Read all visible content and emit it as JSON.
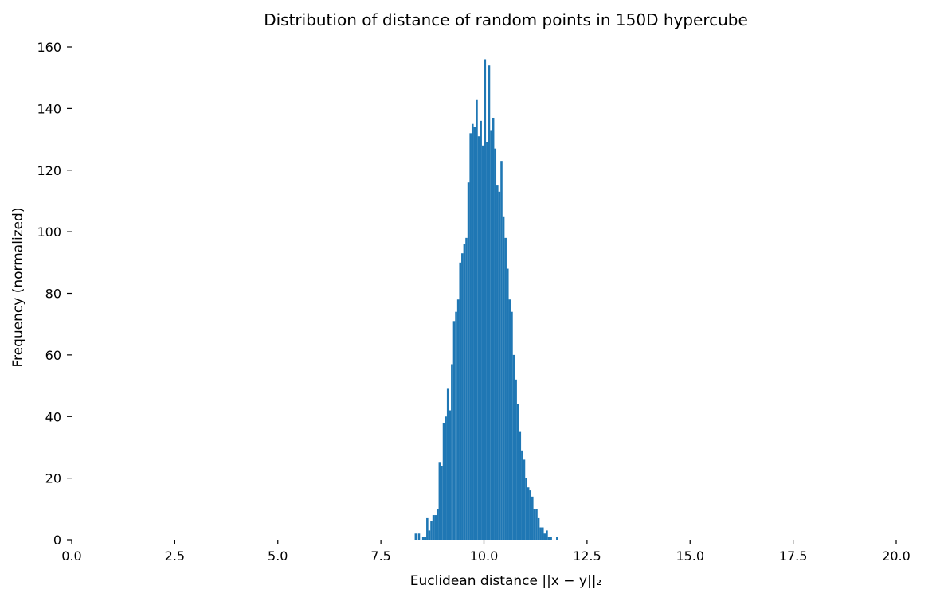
{
  "chart_data": {
    "type": "bar",
    "subtype": "histogram",
    "title": "Distribution of distance of random points in 150D hypercube",
    "xlabel": "Euclidean distance ||x − y||₂",
    "ylabel": "Frequency (normalized)",
    "xlim": [
      0,
      20
    ],
    "ylim": [
      0,
      160
    ],
    "xticks": [
      0,
      2.5,
      5,
      7.5,
      10,
      12.5,
      15,
      17.5,
      20
    ],
    "xtick_labels": [
      "0.0",
      "2.5",
      "5.0",
      "7.5",
      "10.0",
      "12.5",
      "15.0",
      "17.5",
      "20.0"
    ],
    "yticks": [
      0,
      20,
      40,
      60,
      80,
      100,
      120,
      140,
      160
    ],
    "ytick_labels": [
      "0",
      "20",
      "40",
      "60",
      "80",
      "100",
      "120",
      "140",
      "160"
    ],
    "grid": false,
    "color": "#1f77b4",
    "bin_width": 0.05,
    "bins": [
      [
        8.32,
        2
      ],
      [
        8.4,
        2
      ],
      [
        8.5,
        1
      ],
      [
        8.55,
        1
      ],
      [
        8.6,
        7
      ],
      [
        8.65,
        3
      ],
      [
        8.7,
        6
      ],
      [
        8.75,
        8
      ],
      [
        8.8,
        8
      ],
      [
        8.85,
        10
      ],
      [
        8.9,
        25
      ],
      [
        8.95,
        24
      ],
      [
        9.0,
        38
      ],
      [
        9.05,
        40
      ],
      [
        9.1,
        49
      ],
      [
        9.15,
        42
      ],
      [
        9.2,
        57
      ],
      [
        9.25,
        71
      ],
      [
        9.3,
        74
      ],
      [
        9.35,
        78
      ],
      [
        9.4,
        90
      ],
      [
        9.45,
        93
      ],
      [
        9.5,
        96
      ],
      [
        9.55,
        98
      ],
      [
        9.6,
        116
      ],
      [
        9.65,
        132
      ],
      [
        9.7,
        135
      ],
      [
        9.75,
        134
      ],
      [
        9.8,
        143
      ],
      [
        9.85,
        131
      ],
      [
        9.9,
        136
      ],
      [
        9.95,
        128
      ],
      [
        10.0,
        156
      ],
      [
        10.05,
        129
      ],
      [
        10.1,
        154
      ],
      [
        10.15,
        133
      ],
      [
        10.2,
        137
      ],
      [
        10.25,
        127
      ],
      [
        10.3,
        115
      ],
      [
        10.35,
        113
      ],
      [
        10.4,
        123
      ],
      [
        10.45,
        105
      ],
      [
        10.5,
        98
      ],
      [
        10.55,
        88
      ],
      [
        10.6,
        78
      ],
      [
        10.65,
        74
      ],
      [
        10.7,
        60
      ],
      [
        10.75,
        52
      ],
      [
        10.8,
        44
      ],
      [
        10.85,
        35
      ],
      [
        10.9,
        29
      ],
      [
        10.95,
        26
      ],
      [
        11.0,
        20
      ],
      [
        11.05,
        17
      ],
      [
        11.1,
        16
      ],
      [
        11.15,
        14
      ],
      [
        11.2,
        10
      ],
      [
        11.25,
        10
      ],
      [
        11.3,
        7
      ],
      [
        11.35,
        4
      ],
      [
        11.4,
        4
      ],
      [
        11.45,
        2
      ],
      [
        11.5,
        3
      ],
      [
        11.55,
        1
      ],
      [
        11.6,
        1
      ],
      [
        11.75,
        1
      ]
    ]
  }
}
